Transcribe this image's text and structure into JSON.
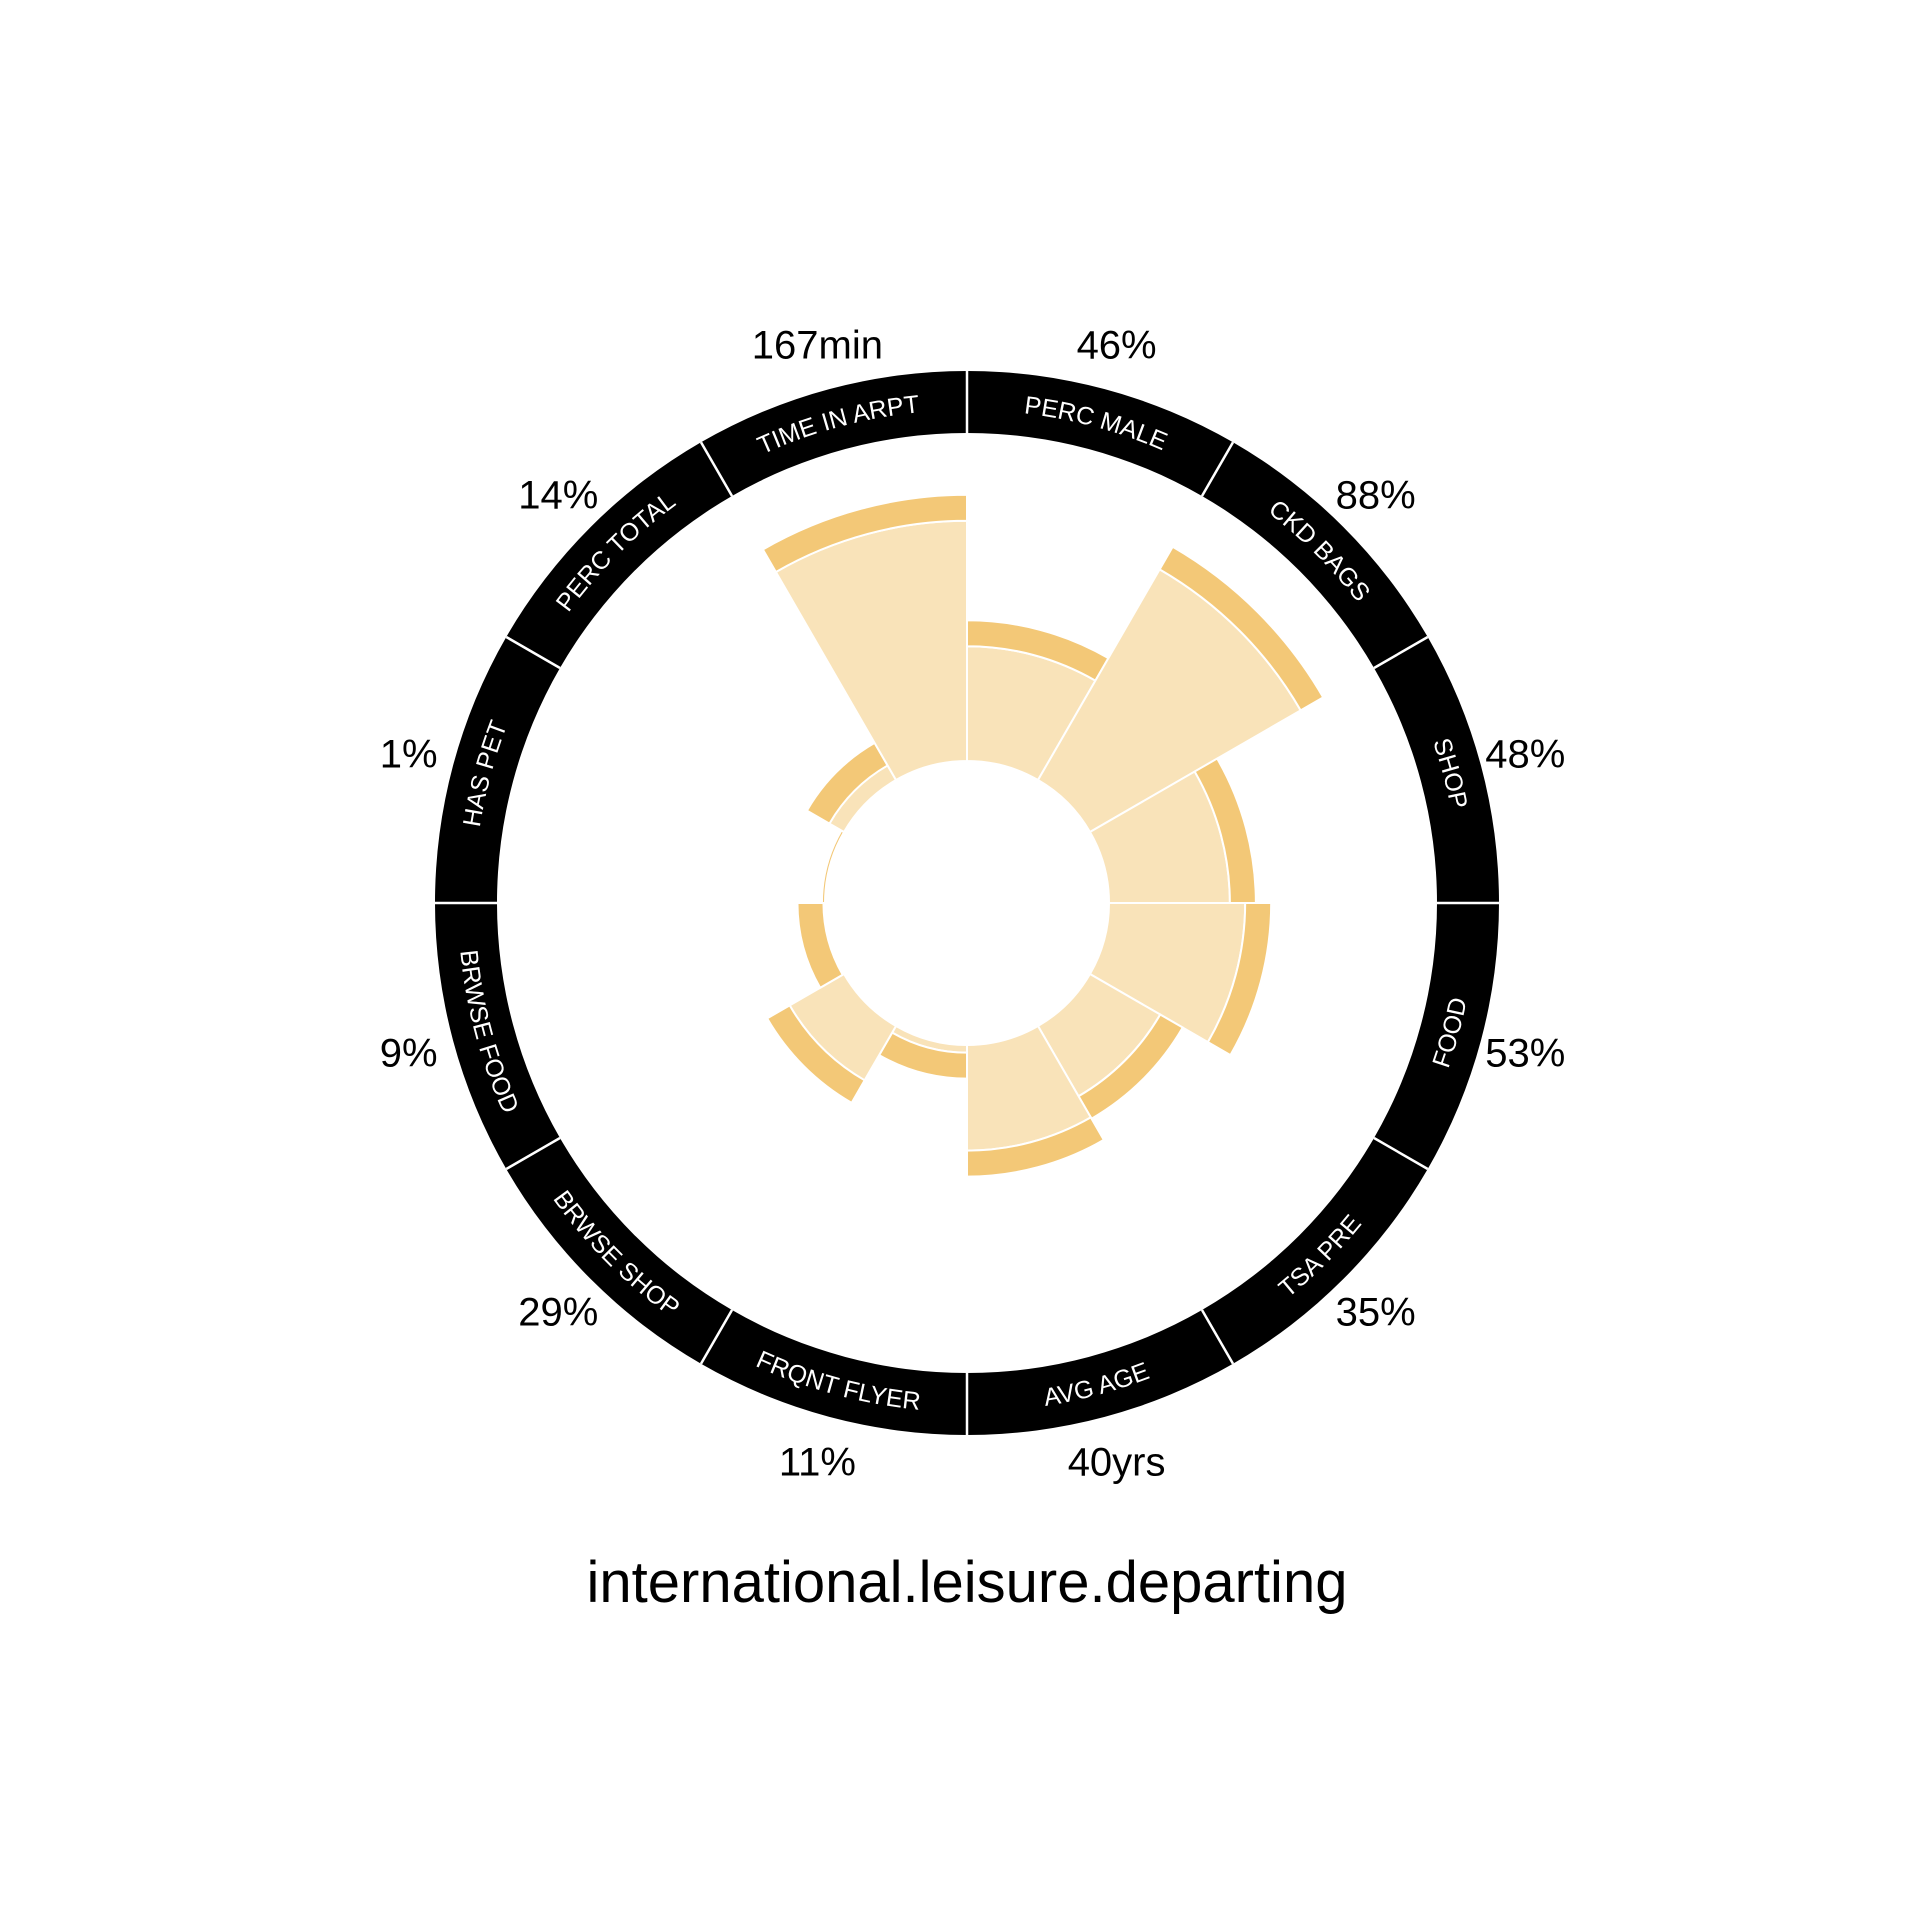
{
  "chart_data": {
    "type": "radial-bar",
    "title": "international.leisure.departing",
    "start_angle_deg": 0,
    "direction": "clockwise",
    "segments": [
      {
        "label": "PERC MALE",
        "value_text": "46%",
        "value": 0.46
      },
      {
        "label": "CKD BAGS",
        "value_text": "88%",
        "value": 0.88
      },
      {
        "label": "SHOP",
        "value_text": "48%",
        "value": 0.48
      },
      {
        "label": "FOOD",
        "value_text": "53%",
        "value": 0.53
      },
      {
        "label": "TSA PRE",
        "value_text": "35%",
        "value": 0.35
      },
      {
        "label": "AVG AGE",
        "value_text": "40yrs",
        "value": 0.43
      },
      {
        "label": "FRQNT FLYER",
        "value_text": "11%",
        "value": 0.11
      },
      {
        "label": "BRWSE SHOP",
        "value_text": "29%",
        "value": 0.29
      },
      {
        "label": "BRWSE FOOD",
        "value_text": "9%",
        "value": 0.09
      },
      {
        "label": "HAS PET",
        "value_text": "1%",
        "value": 0.01
      },
      {
        "label": "PERC TOTAL",
        "value_text": "14%",
        "value": 0.14
      },
      {
        "label": "TIME IN ARPT",
        "value_text": "167min",
        "value": 0.87
      }
    ],
    "colors": {
      "bar_fill": "#F9E3B9",
      "bar_cap": "#F3C877",
      "band": "#000000",
      "band_text": "#ffffff",
      "separator": "#ffffff"
    }
  }
}
